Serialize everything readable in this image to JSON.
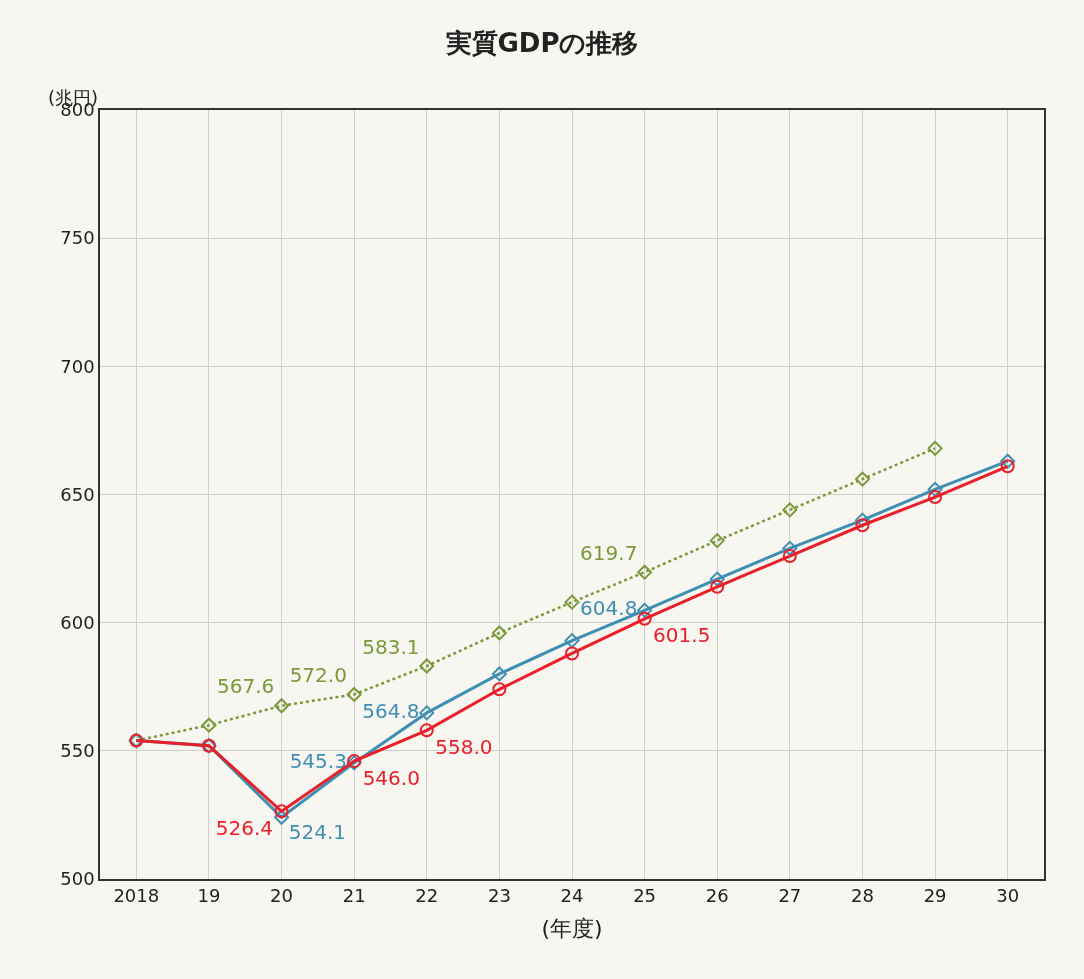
{
  "chart_data": {
    "type": "line",
    "title": "実質GDPの推移",
    "xlabel": "(年度)",
    "ylabel": "(兆円)",
    "x": [
      2018,
      2019,
      2020,
      2021,
      2022,
      2023,
      2024,
      2025,
      2026,
      2027,
      2028,
      2029,
      2030
    ],
    "xlim": [
      2017.5,
      2030.5
    ],
    "xticks": [
      2018,
      {
        "value": 2019,
        "label": "19"
      },
      {
        "value": 2020,
        "label": "20"
      },
      {
        "value": 2021,
        "label": "21"
      },
      {
        "value": 2022,
        "label": "22"
      },
      {
        "value": 2023,
        "label": "23"
      },
      {
        "value": 2024,
        "label": "24"
      },
      {
        "value": 2025,
        "label": "25"
      },
      {
        "value": 2026,
        "label": "26"
      },
      {
        "value": 2027,
        "label": "27"
      },
      {
        "value": 2028,
        "label": "28"
      },
      {
        "value": 2029,
        "label": "29"
      },
      {
        "value": 2030,
        "label": "30"
      }
    ],
    "ylim": [
      500,
      800
    ],
    "yticks": [
      500,
      550,
      600,
      650,
      700,
      750,
      800
    ],
    "grid": true,
    "series": [
      {
        "color": "#7a9a3a",
        "marker": "diamond",
        "line_style": "dotted",
        "values": [
          554,
          560,
          567.6,
          572.0,
          583.1,
          596,
          608,
          619.7,
          632,
          644,
          656,
          668,
          null
        ],
        "value_labels": [
          null,
          null,
          "567.6",
          "572.0",
          "583.1",
          null,
          null,
          "619.7",
          null,
          null,
          null,
          null,
          null
        ]
      },
      {
        "color": "#3f8fb3",
        "marker": "diamond",
        "line_style": "solid",
        "values": [
          554,
          552,
          524.1,
          545.3,
          564.8,
          580,
          593,
          604.8,
          617,
          629,
          640,
          652,
          663
        ],
        "value_labels": [
          null,
          null,
          "524.1",
          "545.3",
          "564.8",
          null,
          null,
          "604.8",
          null,
          null,
          null,
          null,
          null
        ]
      },
      {
        "color": "#e8202a",
        "marker": "circle",
        "line_style": "solid",
        "values": [
          554,
          552,
          526.4,
          546.0,
          558.0,
          574,
          588,
          601.5,
          614,
          626,
          638,
          649,
          661
        ],
        "value_labels": [
          null,
          null,
          "526.4",
          "546.0",
          "558.0",
          null,
          null,
          "601.5",
          null,
          null,
          null,
          null,
          null
        ]
      }
    ]
  }
}
